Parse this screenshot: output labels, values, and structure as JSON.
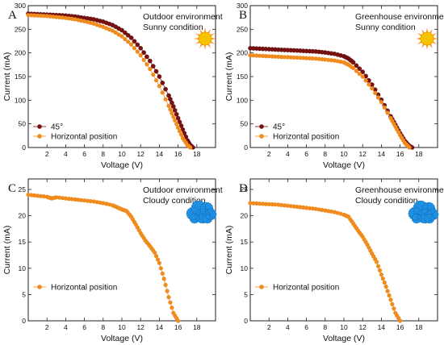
{
  "colors": {
    "series_45": "#7b1010",
    "series_horizontal": "#f08c1e",
    "sun": "#f5c400",
    "sun_rays": "#ff8c00",
    "cloud": "#1e8fe1"
  },
  "chart_data": [
    {
      "type": "line",
      "letter": "A",
      "annotation": [
        "Outdoor environment",
        "Sunny condition"
      ],
      "icon": "sun-icon",
      "xlabel": "Voltage (V)",
      "ylabel": "Current (mA)",
      "xlim": [
        0,
        20
      ],
      "ylim": [
        0,
        300
      ],
      "xticks": [
        2,
        4,
        6,
        8,
        10,
        12,
        14,
        16,
        18
      ],
      "yticks": [
        0,
        50,
        100,
        150,
        200,
        250,
        300
      ],
      "legend": "bottom-left",
      "series": [
        {
          "name": "45°",
          "color": "#7b1010",
          "x": [
            0,
            1,
            2,
            3,
            4,
            5,
            6,
            7,
            8,
            9,
            10,
            11,
            12,
            13,
            14,
            15,
            15.5,
            16,
            16.5,
            17,
            17.3,
            17.6
          ],
          "y": [
            283,
            282,
            281,
            280,
            279,
            277,
            274,
            271,
            266,
            259,
            248,
            232,
            210,
            183,
            150,
            110,
            87,
            62,
            38,
            15,
            5,
            0
          ]
        },
        {
          "name": "Horizontal position",
          "color": "#f08c1e",
          "x": [
            0,
            1,
            2,
            3,
            4,
            5,
            6,
            7,
            8,
            9,
            10,
            11,
            12,
            13,
            14,
            15,
            15.5,
            16,
            16.5,
            17,
            17.3
          ],
          "y": [
            280,
            279,
            278,
            276,
            274,
            271,
            267,
            262,
            255,
            247,
            235,
            218,
            195,
            166,
            130,
            88,
            65,
            42,
            20,
            5,
            0
          ]
        }
      ]
    },
    {
      "type": "line",
      "letter": "B",
      "annotation": [
        "Greenhouse environment",
        "Sunny  condition"
      ],
      "icon": "sun-icon",
      "xlabel": "Voltage (V)",
      "ylabel": "Current (mA)",
      "xlim": [
        0,
        20
      ],
      "ylim": [
        0,
        300
      ],
      "xticks": [
        2,
        4,
        6,
        8,
        10,
        12,
        14,
        16,
        18
      ],
      "yticks": [
        0,
        50,
        100,
        150,
        200,
        250,
        300
      ],
      "legend": "bottom-left",
      "series": [
        {
          "name": "45°",
          "color": "#7b1010",
          "x": [
            0,
            1,
            2,
            3,
            4,
            5,
            6,
            7,
            8,
            9,
            10,
            10.5,
            11,
            12,
            13,
            14,
            15,
            15.5,
            16,
            16.5,
            17,
            17.3
          ],
          "y": [
            210,
            209,
            208,
            207,
            206,
            205,
            204,
            203,
            201,
            198,
            193,
            188,
            180,
            160,
            133,
            101,
            66,
            48,
            30,
            14,
            3,
            0
          ]
        },
        {
          "name": "Horizontal position",
          "color": "#f08c1e",
          "x": [
            0,
            1,
            2,
            3,
            4,
            5,
            6,
            7,
            8,
            9,
            10,
            10.5,
            11,
            12,
            13,
            14,
            15,
            15.5,
            16,
            16.5,
            17
          ],
          "y": [
            195,
            194,
            193,
            192,
            191,
            190,
            189,
            188,
            186,
            184,
            180,
            175,
            168,
            150,
            125,
            96,
            62,
            44,
            26,
            10,
            0
          ]
        }
      ]
    },
    {
      "type": "line",
      "letter": "C",
      "annotation": [
        "Outdoor environment",
        "Cloudy condition"
      ],
      "icon": "cloud-icon",
      "xlabel": "Voltage (V)",
      "ylabel": "Current (mA)",
      "xlim": [
        0,
        20
      ],
      "ylim": [
        0,
        27
      ],
      "xticks": [
        2,
        4,
        6,
        8,
        10,
        12,
        14,
        16,
        18
      ],
      "yticks": [
        0,
        5,
        10,
        15,
        20,
        25
      ],
      "legend": "bottom-left",
      "series": [
        {
          "name": "Horizontal position",
          "color": "#f08c1e",
          "x": [
            0,
            1,
            2,
            2.5,
            3,
            4,
            5,
            6,
            7,
            8,
            9,
            9.5,
            10,
            10.5,
            11,
            11.5,
            12,
            12.5,
            13,
            13.5,
            14,
            14.5,
            15,
            15.5,
            16
          ],
          "y": [
            24,
            23.8,
            23.6,
            23.3,
            23.5,
            23.3,
            23.1,
            22.9,
            22.7,
            22.4,
            22.0,
            21.6,
            21.2,
            20.9,
            19.8,
            18.3,
            16.7,
            15.3,
            14.2,
            13.0,
            11.0,
            8.0,
            4.5,
            1.5,
            0
          ]
        }
      ]
    },
    {
      "type": "line",
      "letter": "D",
      "annotation": [
        "Greenhouse environment",
        "Cloudy condition"
      ],
      "icon": "cloud-icon",
      "xlabel": "Voltage (V)",
      "ylabel": "Current (mA)",
      "xlim": [
        0,
        20
      ],
      "ylim": [
        0,
        27
      ],
      "xticks": [
        2,
        4,
        6,
        8,
        10,
        12,
        14,
        16,
        18
      ],
      "yticks": [
        0,
        5,
        10,
        15,
        20,
        25
      ],
      "legend": "bottom-left",
      "series": [
        {
          "name": "Horizontal position",
          "color": "#f08c1e",
          "x": [
            0,
            1,
            2,
            3,
            4,
            5,
            6,
            7,
            8,
            9,
            10,
            10.5,
            11,
            11.5,
            12,
            12.5,
            13,
            13.5,
            14,
            14.5,
            15,
            15.5,
            16
          ],
          "y": [
            22.4,
            22.3,
            22.2,
            22.1,
            21.9,
            21.7,
            21.5,
            21.3,
            21.0,
            20.7,
            20.2,
            19.8,
            18.5,
            17.2,
            16.0,
            14.5,
            12.8,
            11.2,
            8.8,
            6.5,
            4.0,
            1.5,
            0
          ]
        }
      ]
    }
  ]
}
